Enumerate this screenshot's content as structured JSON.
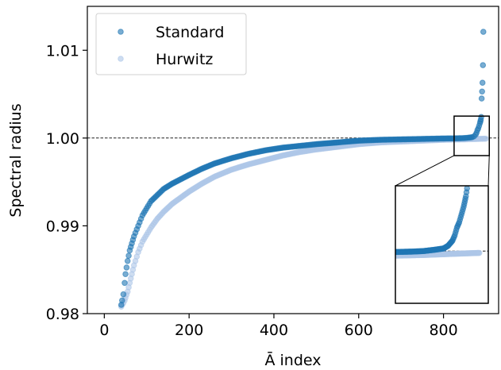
{
  "chart_data": {
    "type": "scatter",
    "title": "",
    "xlabel": "Ā index",
    "ylabel": "Spectral radius",
    "xlim": [
      -40,
      930
    ],
    "ylim": [
      0.98,
      1.015
    ],
    "xticks": [
      0,
      200,
      400,
      600,
      800
    ],
    "xtick_labels": [
      "0",
      "200",
      "400",
      "600",
      "800"
    ],
    "yticks": [
      0.98,
      0.99,
      1.0,
      1.01
    ],
    "ytick_labels": [
      "0.98",
      "0.99",
      "1.00",
      "1.01"
    ],
    "reference_line": {
      "y": 1.0,
      "style": "dashed"
    },
    "legend": {
      "position": "top-left"
    },
    "grid": false,
    "inset": {
      "xlim": [
        825,
        908
      ],
      "ylim": [
        0.998,
        1.0025
      ]
    },
    "series": [
      {
        "name": "Standard",
        "color": "#1f77b4",
        "alpha": 0.6,
        "x": [
          40,
          42,
          45,
          48,
          50,
          55,
          60,
          65,
          70,
          80,
          90,
          100,
          110,
          125,
          140,
          160,
          180,
          200,
          230,
          260,
          300,
          340,
          380,
          420,
          460,
          500,
          550,
          600,
          650,
          700,
          750,
          780,
          800,
          820,
          840,
          850,
          860,
          868,
          872,
          876,
          878,
          880,
          882,
          884,
          886,
          887,
          888,
          889,
          890,
          891,
          892,
          893,
          894
        ],
        "y": [
          0.981,
          0.9815,
          0.9822,
          0.9835,
          0.9845,
          0.986,
          0.9872,
          0.988,
          0.9888,
          0.99,
          0.9912,
          0.992,
          0.9928,
          0.9935,
          0.9942,
          0.9948,
          0.9953,
          0.9958,
          0.9965,
          0.9971,
          0.9977,
          0.9982,
          0.9986,
          0.9989,
          0.9991,
          0.9993,
          0.9995,
          0.9997,
          0.9998,
          0.99985,
          0.9999,
          0.99993,
          0.99995,
          0.99996,
          0.99998,
          1.0,
          1.00005,
          1.0001,
          1.0002,
          1.0004,
          1.0006,
          1.0009,
          1.0011,
          1.0014,
          1.0017,
          1.0019,
          1.0021,
          1.0024,
          1.0045,
          1.0053,
          1.0063,
          1.0083,
          1.0121
        ]
      },
      {
        "name": "Hurwitz",
        "color": "#aec7e8",
        "alpha": 0.6,
        "x": [
          40,
          42,
          45,
          48,
          50,
          55,
          60,
          65,
          70,
          80,
          90,
          100,
          110,
          125,
          140,
          160,
          180,
          200,
          230,
          260,
          300,
          340,
          380,
          420,
          460,
          500,
          550,
          600,
          650,
          700,
          750,
          800,
          850,
          880,
          900
        ],
        "y": [
          0.9808,
          0.981,
          0.9812,
          0.9815,
          0.9818,
          0.9825,
          0.9835,
          0.9845,
          0.9855,
          0.987,
          0.9882,
          0.989,
          0.9898,
          0.9908,
          0.9916,
          0.9925,
          0.9932,
          0.9939,
          0.9948,
          0.9956,
          0.9964,
          0.997,
          0.9975,
          0.998,
          0.9984,
          0.9987,
          0.999,
          0.9993,
          0.9995,
          0.9996,
          0.9997,
          0.9998,
          0.99985,
          0.9999,
          0.99993
        ]
      }
    ]
  }
}
